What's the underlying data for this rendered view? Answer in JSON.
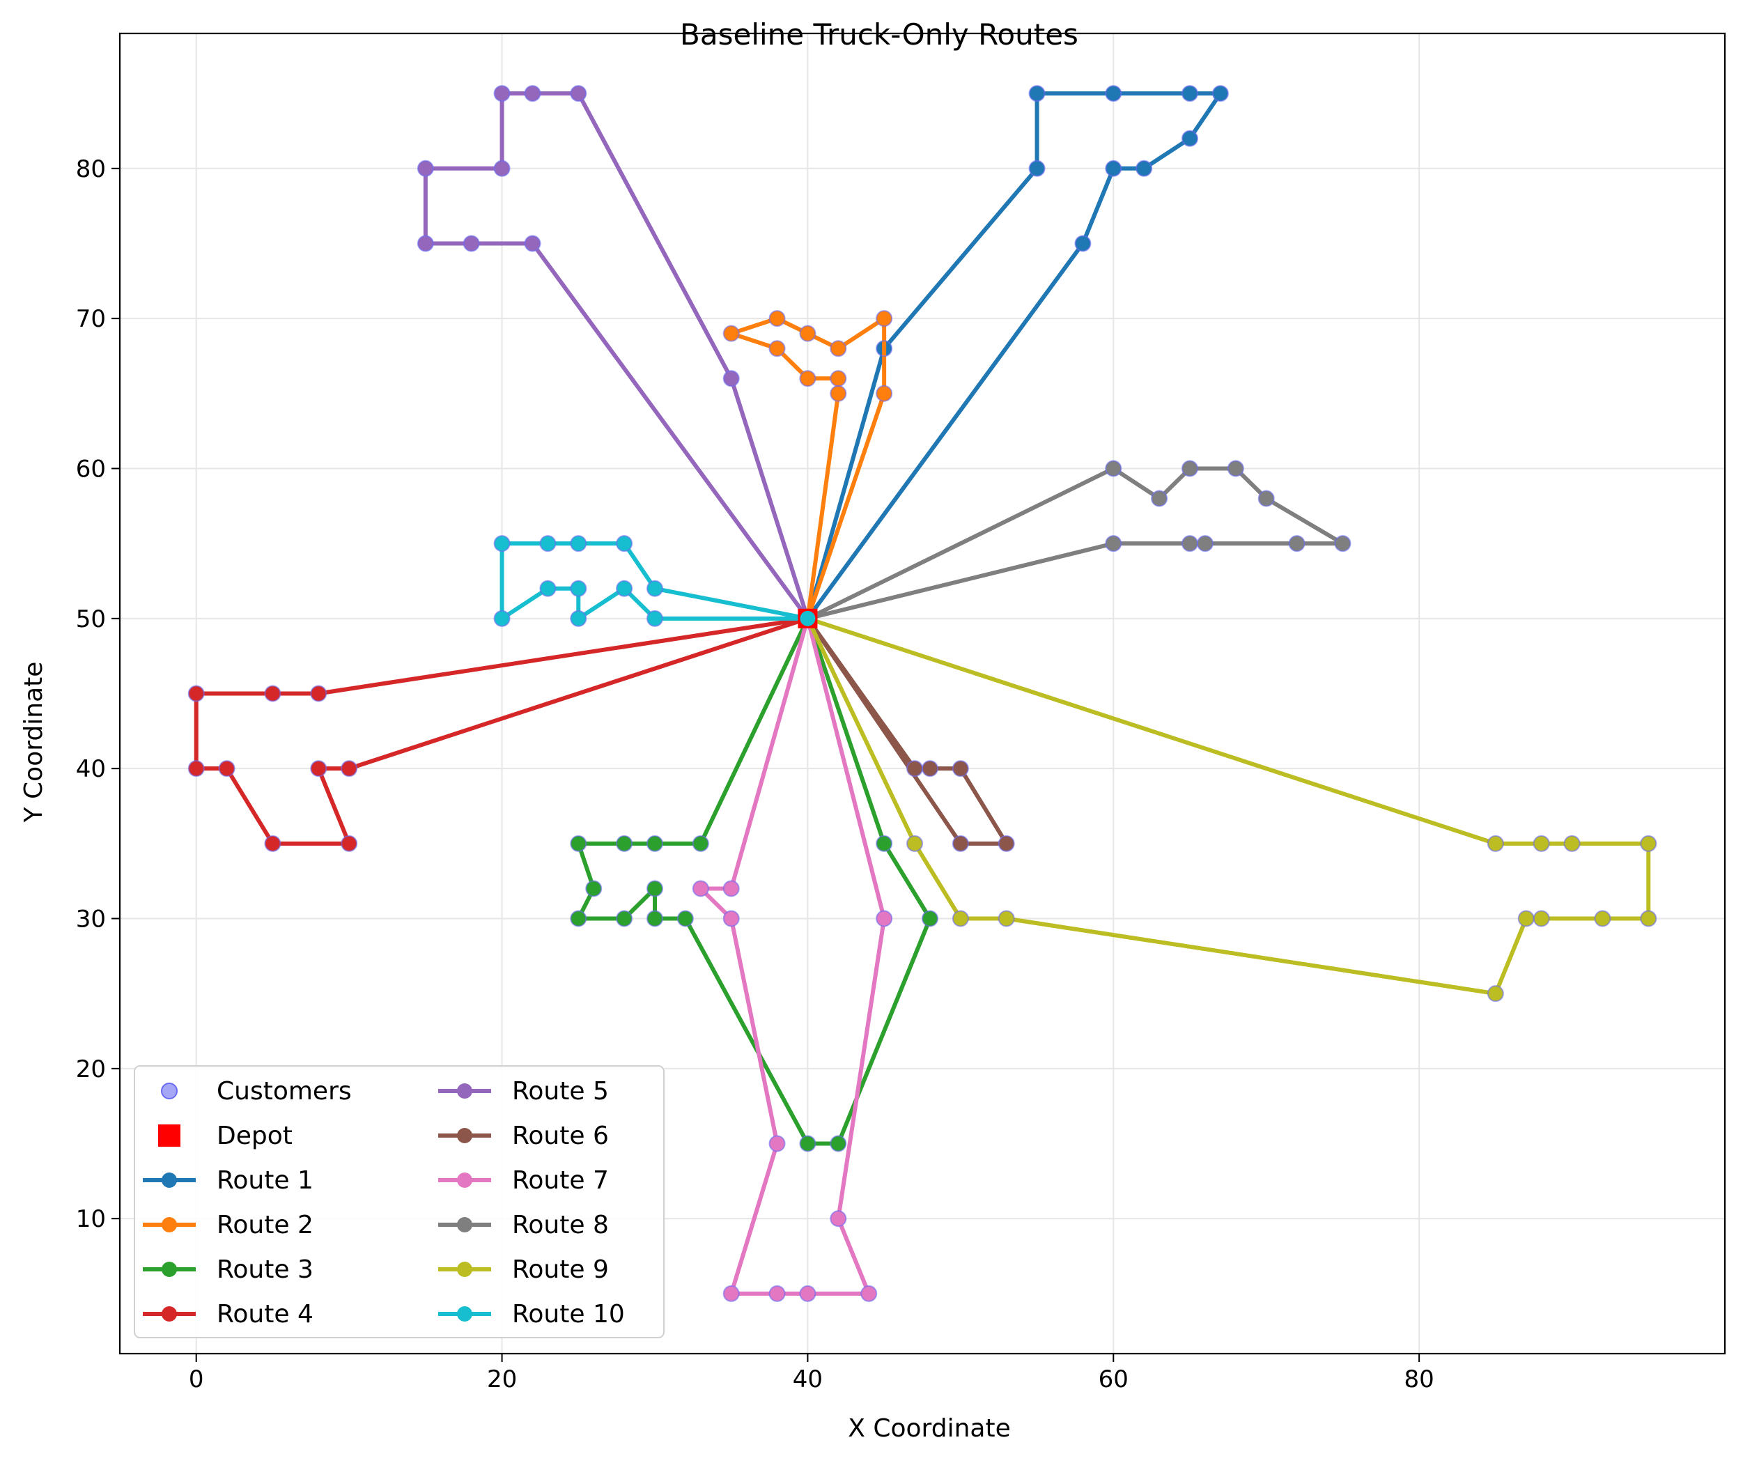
{
  "chart_data": {
    "type": "line",
    "title": "Baseline Truck-Only Routes",
    "xlabel": "X Coordinate",
    "ylabel": "Y Coordinate",
    "xlim": [
      -5,
      100
    ],
    "ylim": [
      1,
      89
    ],
    "xticks": [
      0,
      20,
      40,
      60,
      80
    ],
    "yticks": [
      10,
      20,
      30,
      40,
      50,
      60,
      70,
      80
    ],
    "grid": true,
    "legend": {
      "placement": "lower-left",
      "columns": 2
    },
    "depot": {
      "name": "Depot",
      "x": 40,
      "y": 50,
      "color": "#ff0000"
    },
    "customers": {
      "name": "Customers",
      "color": "#6a6af2"
    },
    "series": [
      {
        "name": "Route 1",
        "color": "#1f77b4",
        "points": [
          [
            40,
            50
          ],
          [
            45,
            68
          ],
          [
            55,
            80
          ],
          [
            55,
            85
          ],
          [
            60,
            85
          ],
          [
            65,
            85
          ],
          [
            67,
            85
          ],
          [
            65,
            82
          ],
          [
            62,
            80
          ],
          [
            60,
            80
          ],
          [
            58,
            75
          ],
          [
            40,
            50
          ]
        ]
      },
      {
        "name": "Route 2",
        "color": "#ff7f0e",
        "points": [
          [
            40,
            50
          ],
          [
            42,
            65
          ],
          [
            42,
            66
          ],
          [
            40,
            66
          ],
          [
            38,
            68
          ],
          [
            35,
            69
          ],
          [
            38,
            70
          ],
          [
            40,
            69
          ],
          [
            42,
            68
          ],
          [
            45,
            70
          ],
          [
            45,
            65
          ],
          [
            40,
            50
          ]
        ]
      },
      {
        "name": "Route 3",
        "color": "#2ca02c",
        "points": [
          [
            40,
            50
          ],
          [
            33,
            35
          ],
          [
            30,
            35
          ],
          [
            28,
            35
          ],
          [
            25,
            35
          ],
          [
            26,
            32
          ],
          [
            25,
            30
          ],
          [
            28,
            30
          ],
          [
            30,
            32
          ],
          [
            30,
            30
          ],
          [
            32,
            30
          ],
          [
            40,
            15
          ],
          [
            42,
            15
          ],
          [
            48,
            30
          ],
          [
            45,
            35
          ],
          [
            40,
            50
          ]
        ]
      },
      {
        "name": "Route 4",
        "color": "#d62728",
        "points": [
          [
            40,
            50
          ],
          [
            8,
            45
          ],
          [
            5,
            45
          ],
          [
            0,
            45
          ],
          [
            0,
            40
          ],
          [
            2,
            40
          ],
          [
            5,
            35
          ],
          [
            10,
            35
          ],
          [
            8,
            40
          ],
          [
            10,
            40
          ],
          [
            40,
            50
          ]
        ]
      },
      {
        "name": "Route 5",
        "color": "#9467bd",
        "points": [
          [
            40,
            50
          ],
          [
            22,
            75
          ],
          [
            18,
            75
          ],
          [
            15,
            75
          ],
          [
            15,
            80
          ],
          [
            20,
            80
          ],
          [
            20,
            85
          ],
          [
            22,
            85
          ],
          [
            25,
            85
          ],
          [
            35,
            66
          ],
          [
            40,
            50
          ]
        ]
      },
      {
        "name": "Route 6",
        "color": "#8c564b",
        "points": [
          [
            40,
            50
          ],
          [
            47,
            40
          ],
          [
            48,
            40
          ],
          [
            50,
            40
          ],
          [
            53,
            35
          ],
          [
            50,
            35
          ],
          [
            40,
            50
          ]
        ]
      },
      {
        "name": "Route 7",
        "color": "#e377c2",
        "points": [
          [
            40,
            50
          ],
          [
            35,
            32
          ],
          [
            33,
            32
          ],
          [
            35,
            30
          ],
          [
            38,
            15
          ],
          [
            35,
            5
          ],
          [
            38,
            5
          ],
          [
            40,
            5
          ],
          [
            44,
            5
          ],
          [
            42,
            10
          ],
          [
            45,
            30
          ],
          [
            40,
            50
          ]
        ]
      },
      {
        "name": "Route 8",
        "color": "#7f7f7f",
        "points": [
          [
            40,
            50
          ],
          [
            60,
            60
          ],
          [
            63,
            58
          ],
          [
            65,
            60
          ],
          [
            68,
            60
          ],
          [
            70,
            58
          ],
          [
            75,
            55
          ],
          [
            72,
            55
          ],
          [
            66,
            55
          ],
          [
            65,
            55
          ],
          [
            60,
            55
          ],
          [
            40,
            50
          ]
        ]
      },
      {
        "name": "Route 9",
        "color": "#bcbd22",
        "points": [
          [
            40,
            50
          ],
          [
            85,
            35
          ],
          [
            88,
            35
          ],
          [
            90,
            35
          ],
          [
            95,
            35
          ],
          [
            95,
            30
          ],
          [
            92,
            30
          ],
          [
            88,
            30
          ],
          [
            87,
            30
          ],
          [
            85,
            25
          ],
          [
            53,
            30
          ],
          [
            50,
            30
          ],
          [
            47,
            35
          ],
          [
            40,
            50
          ]
        ]
      },
      {
        "name": "Route 10",
        "color": "#17becf",
        "points": [
          [
            40,
            50
          ],
          [
            30,
            52
          ],
          [
            28,
            55
          ],
          [
            25,
            55
          ],
          [
            23,
            55
          ],
          [
            20,
            55
          ],
          [
            20,
            50
          ],
          [
            23,
            52
          ],
          [
            25,
            52
          ],
          [
            25,
            50
          ],
          [
            28,
            52
          ],
          [
            30,
            50
          ],
          [
            40,
            50
          ]
        ]
      }
    ]
  }
}
